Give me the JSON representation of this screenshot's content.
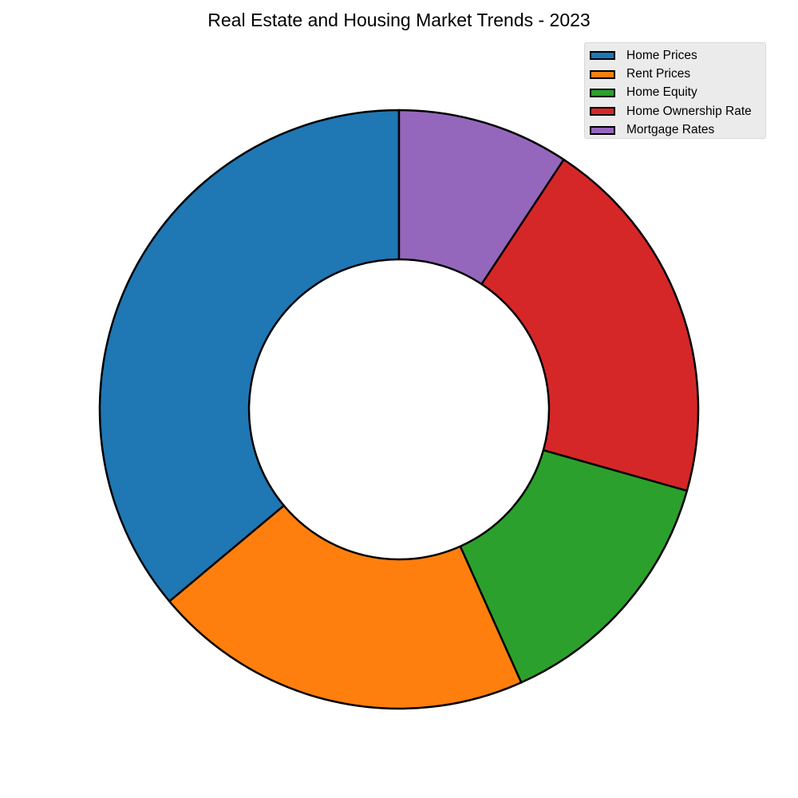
{
  "chart_data": {
    "type": "pie",
    "style": "donut",
    "title": "Real Estate and Housing Market Trends - 2023",
    "categories": [
      "Home Prices",
      "Rent Prices",
      "Home Equity",
      "Home Ownership Rate",
      "Mortgage Rates"
    ],
    "values": [
      35,
      20,
      13.5,
      19.5,
      9
    ],
    "colors": [
      "#1f77b4",
      "#ff7f0e",
      "#2ca02c",
      "#d62728",
      "#9467bd"
    ],
    "start_angle_deg": 90,
    "direction": "counterclockwise",
    "legend": {
      "position": "top-right",
      "entries": [
        "Home Prices",
        "Rent Prices",
        "Home Equity",
        "Home Ownership Rate",
        "Mortgage Rates"
      ]
    }
  }
}
